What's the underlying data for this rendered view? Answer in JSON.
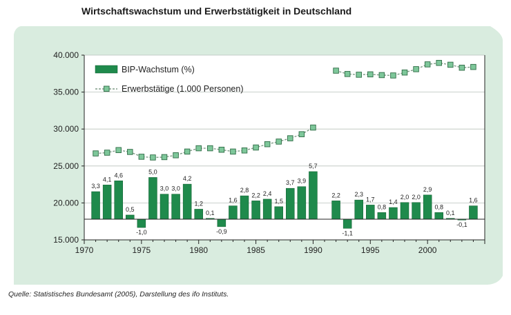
{
  "title": "Wirtschaftswachstum und Erwerbstätigkeit in Deutschland",
  "source": "Quelle: Statistisches Bundesamt (2005), Darstellung des ifo Instituts.",
  "colors": {
    "panel": "#d9ecdf",
    "bar": "#1f8a4c",
    "bar_stroke": "#0f5c2e",
    "marker_fill": "#7ec79a",
    "marker_stroke": "#2e6b45",
    "line": "#7c9a84"
  },
  "chart_data": {
    "type": "bar",
    "y_axis": {
      "min": 15000,
      "max": 40000,
      "ticks": [
        15000,
        20000,
        25000,
        30000,
        35000,
        40000
      ],
      "tick_labels": [
        "15.000",
        "20.000",
        "25.000",
        "30.000",
        "35.000",
        "40.000"
      ]
    },
    "x_axis": {
      "min": 1970,
      "max": 2005,
      "ticks": [
        1970,
        1975,
        1980,
        1985,
        1990,
        1995,
        2000
      ],
      "tick_labels": [
        "1970",
        "1975",
        "1980",
        "1985",
        "1990",
        "1995",
        "2000"
      ]
    },
    "bar_baseline": 17800,
    "bar_scale_per_percent": 1130,
    "legend": [
      {
        "name": "BIP-Wachstum (%)",
        "kind": "bar"
      },
      {
        "name": "Erwerbstätige (1.000 Personen)",
        "kind": "line"
      }
    ],
    "series": [
      {
        "name": "BIP-Wachstum (%)",
        "type": "bar",
        "years": [
          1971,
          1972,
          1973,
          1974,
          1975,
          1976,
          1977,
          1978,
          1979,
          1980,
          1981,
          1982,
          1983,
          1984,
          1985,
          1986,
          1987,
          1988,
          1989,
          1990,
          1992,
          1993,
          1994,
          1995,
          1996,
          1997,
          1998,
          1999,
          2000,
          2001,
          2002,
          2003,
          2004
        ],
        "values": [
          3.3,
          4.1,
          4.6,
          0.5,
          -1.0,
          5.0,
          3.0,
          3.0,
          4.2,
          1.2,
          0.1,
          -0.9,
          1.6,
          2.8,
          2.2,
          2.4,
          1.5,
          3.7,
          3.9,
          5.7,
          2.2,
          -1.1,
          2.3,
          1.7,
          0.8,
          1.4,
          2.0,
          2.0,
          2.9,
          0.8,
          0.1,
          -0.1,
          1.6
        ],
        "labels": [
          "3,3",
          "4,1",
          "4,6",
          "0,5",
          "-1,0",
          "5,0",
          "3,0",
          "3,0",
          "4,2",
          "1,2",
          "0,1",
          "-0,9",
          "1,6",
          "2,8",
          "2,2",
          "2,4",
          "1,5",
          "3,7",
          "3,9",
          "5,7",
          "2,2",
          "-1,1",
          "2,3",
          "1,7",
          "0,8",
          "1,4",
          "2,0",
          "2,0",
          "2,9",
          "0,8",
          "0,1",
          "-0,1",
          "1,6"
        ]
      },
      {
        "name": "Erwerbstätige (1.000 Personen)",
        "type": "line",
        "segments": [
          {
            "years": [
              1971,
              1972,
              1973,
              1974,
              1975,
              1976,
              1977,
              1978,
              1979,
              1980,
              1981,
              1982,
              1983,
              1984,
              1985,
              1986,
              1987,
              1988,
              1989,
              1990
            ],
            "values": [
              26700,
              26800,
              27150,
              26900,
              26250,
              26150,
              26200,
              26450,
              26950,
              27400,
              27400,
              27200,
              26950,
              27100,
              27500,
              27950,
              28300,
              28750,
              29300,
              30200
            ]
          },
          {
            "years": [
              1992,
              1993,
              1994,
              1995,
              1996,
              1997,
              1998,
              1999,
              2000,
              2001,
              2002,
              2003,
              2004
            ],
            "values": [
              37900,
              37450,
              37350,
              37400,
              37300,
              37250,
              37650,
              38100,
              38750,
              38950,
              38700,
              38300,
              38400
            ]
          }
        ]
      }
    ]
  }
}
